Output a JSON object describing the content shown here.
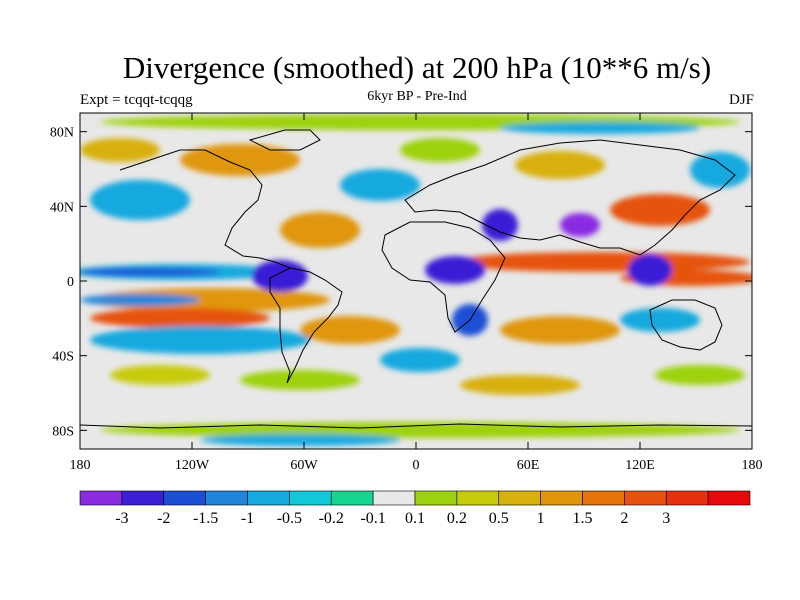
{
  "title": "Divergence (smoothed) at 200 hPa (10**6 m/s)",
  "experiment": "Expt = tcqqt-tcqqg",
  "period": "6kyr BP - Pre-Ind",
  "season": "DJF",
  "map": {
    "lat_ticks": [
      "80N",
      "40N",
      "0",
      "40S",
      "80S"
    ],
    "lon_ticks": [
      "180",
      "120W",
      "60W",
      "0",
      "60E",
      "120E",
      "180"
    ],
    "ocean_color": "#e8e8e8"
  },
  "colorbar": {
    "colors": [
      "#8a2be2",
      "#3b1fd6",
      "#1a4fd6",
      "#1f86db",
      "#14a9df",
      "#0fc8d8",
      "#14d68f",
      "#e8e8e8",
      "#9ed20f",
      "#c7cc0a",
      "#d8b00a",
      "#e0960a",
      "#e6740a",
      "#e6520d",
      "#e63110",
      "#e60a0a"
    ],
    "labels": [
      "-3",
      "-2",
      "-1.5",
      "-1",
      "-0.5",
      "-0.2",
      "-0.1",
      "0.1",
      "0.2",
      "0.5",
      "1",
      "1.5",
      "2",
      "3"
    ]
  }
}
